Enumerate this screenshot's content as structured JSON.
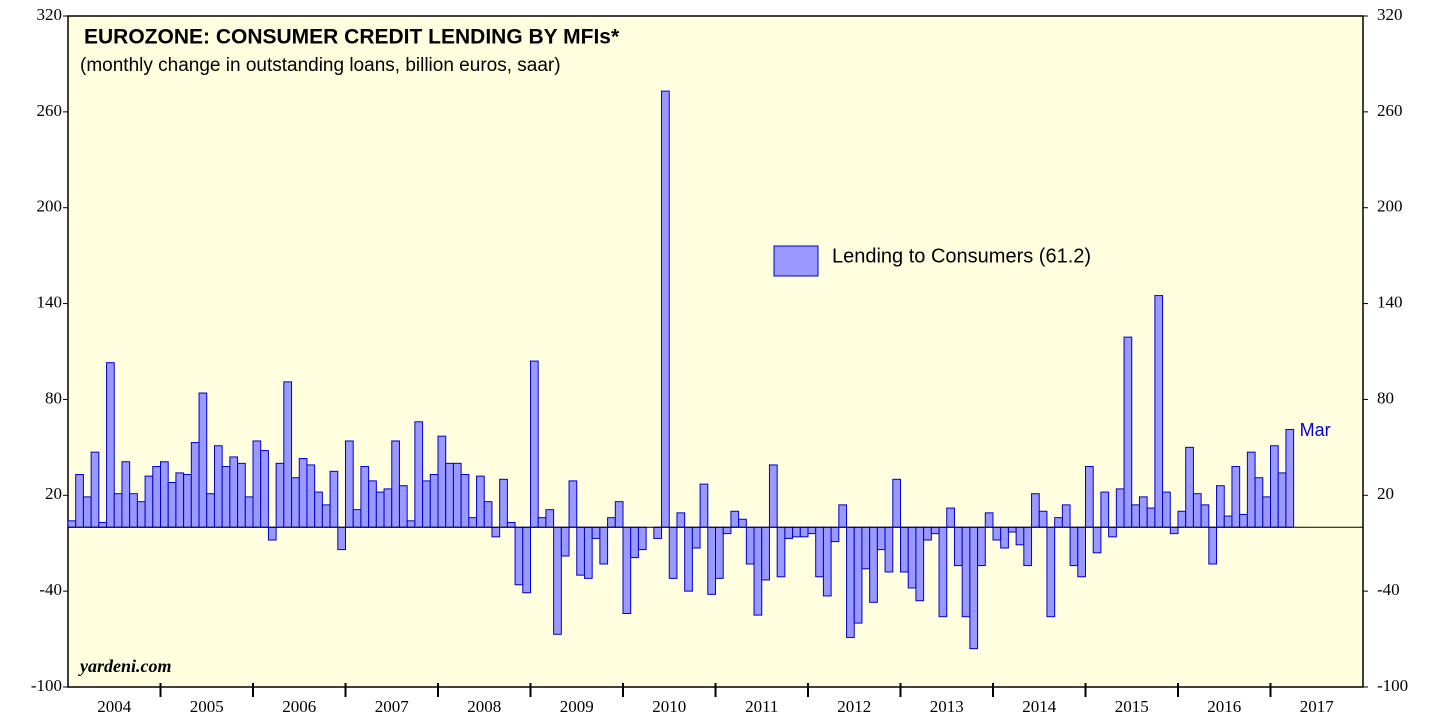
{
  "chart_data": {
    "type": "bar",
    "title": "EUROZONE: CONSUMER CREDIT LENDING BY MFIs*",
    "subtitle": "(monthly change in outstanding loans, billion euros, saar)",
    "x_labels": [
      "2004",
      "2005",
      "2006",
      "2007",
      "2008",
      "2009",
      "2010",
      "2011",
      "2012",
      "2013",
      "2014",
      "2015",
      "2016",
      "2017"
    ],
    "series": [
      {
        "name": "Lending to Consumers (61.2)",
        "color": "#9999ff",
        "edge": "#0000cc",
        "values": [
          4,
          33,
          19,
          47,
          3,
          103,
          21,
          41,
          21,
          16,
          32,
          38,
          41,
          28,
          34,
          33,
          53,
          84,
          21,
          51,
          38,
          44,
          40,
          19,
          54,
          48,
          -8,
          40,
          91,
          31,
          43,
          39,
          22,
          14,
          35,
          -14,
          54,
          11,
          38,
          29,
          22,
          24,
          54,
          26,
          4,
          66,
          29,
          33,
          57,
          40,
          40,
          33,
          6,
          32,
          16,
          -6,
          30,
          3,
          -36,
          -41,
          104,
          6,
          11,
          -67,
          -18,
          29,
          -30,
          -32,
          -7,
          -23,
          6,
          16,
          -54,
          -19,
          -14,
          0,
          -7,
          273,
          -32,
          9,
          -40,
          -13,
          27,
          -42,
          -32,
          -4,
          10,
          5,
          -23,
          -55,
          -33,
          39,
          -31,
          -7,
          -6,
          -6,
          -4,
          -31,
          -43,
          -9,
          14,
          -69,
          -60,
          -26,
          -47,
          -14,
          -28,
          30,
          -28,
          -38,
          -46,
          -8,
          -4,
          -56,
          12,
          -24,
          -56,
          -76,
          -24,
          9,
          -8,
          -13,
          -3,
          -11,
          -24,
          21,
          10,
          -56,
          6,
          14,
          -24,
          -31,
          38,
          -16,
          22,
          -6,
          24,
          119,
          14,
          19,
          12,
          145,
          22,
          -4,
          10,
          50,
          21,
          14,
          -23,
          26,
          7,
          38,
          8,
          47,
          31,
          19,
          51,
          34,
          61.2
        ]
      }
    ],
    "annotations": [
      "Mar",
      "yardeni.com"
    ],
    "ylim": [
      -100,
      320
    ],
    "yticks": [
      -100,
      -40,
      20,
      80,
      140,
      200,
      260,
      320
    ],
    "zero_line": true
  }
}
